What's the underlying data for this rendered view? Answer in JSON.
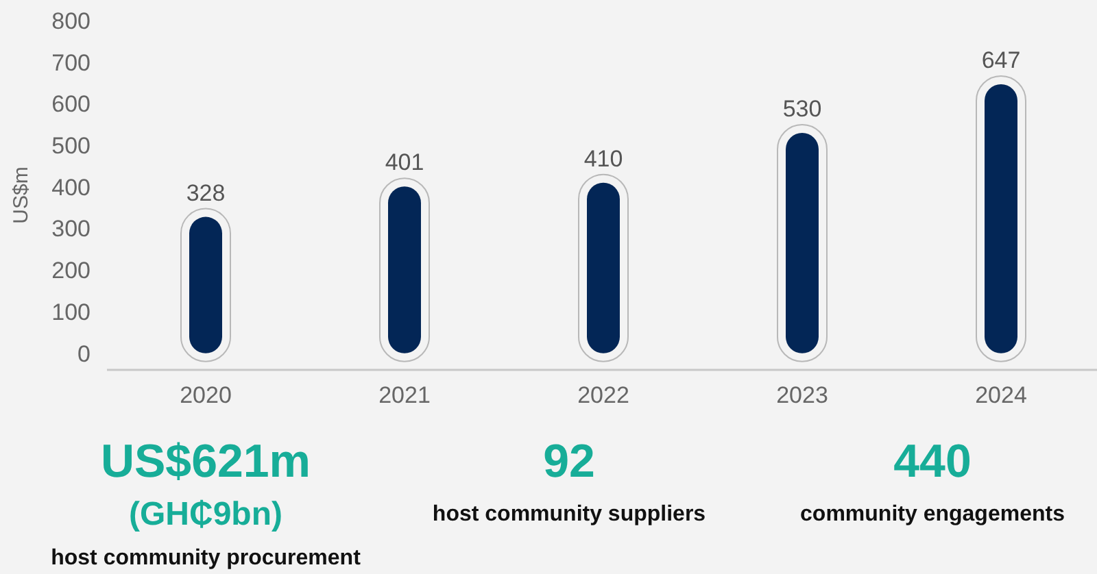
{
  "chart_data": {
    "type": "bar",
    "ylabel": "US$m",
    "categories": [
      "2020",
      "2021",
      "2022",
      "2023",
      "2024"
    ],
    "values": [
      328,
      401,
      410,
      530,
      647
    ],
    "color": "#032656",
    "ylim": [
      -40,
      800
    ],
    "yticks": [
      0,
      100,
      200,
      300,
      400,
      500,
      600,
      700,
      800
    ],
    "grid": false,
    "data_labels": true,
    "annotations": [
      "US$621m",
      "(GH₵9bn)",
      "host community procurement",
      "92",
      "host community suppliers",
      "440",
      "community engagements"
    ]
  }
}
